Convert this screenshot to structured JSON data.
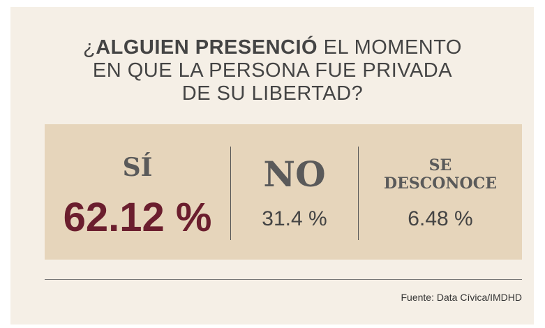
{
  "title": {
    "prefix": "¿",
    "bold": "ALGUIEN PRESENCIÓ",
    "rest_line1": " EL MOMENTO",
    "line2": "EN QUE LA PERSONA FUE PRIVADA",
    "line3": "DE SU LIBERTAD?"
  },
  "items": [
    {
      "label": "SÍ",
      "value": "62.12 %"
    },
    {
      "label": "NO",
      "value": "31.4 %"
    },
    {
      "label": "SE DESCONOCE",
      "value": "6.48 %"
    }
  ],
  "source": "Fuente: Data Cívica/IMDHD"
}
